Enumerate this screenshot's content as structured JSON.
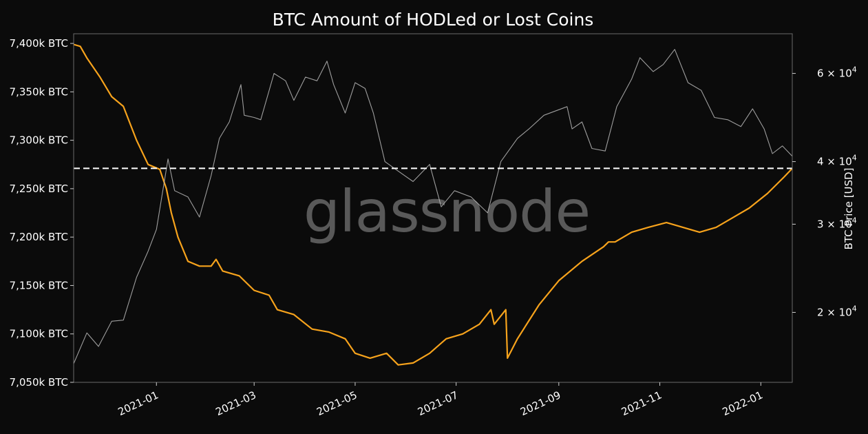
{
  "chart_data": {
    "type": "line",
    "title": "BTC Amount of HODLed or Lost Coins",
    "watermark": "glassnode",
    "xlabel": "",
    "ylabel_left": "",
    "ylabel_right": "BTC Price [USD]",
    "x_range": [
      "2020-11-12",
      "2022-01-20"
    ],
    "x_ticks": [
      {
        "date": "2021-01-01",
        "label": "2021-01"
      },
      {
        "date": "2021-03-01",
        "label": "2021-03"
      },
      {
        "date": "2021-05-01",
        "label": "2021-05"
      },
      {
        "date": "2021-07-01",
        "label": "2021-07"
      },
      {
        "date": "2021-09-01",
        "label": "2021-09"
      },
      {
        "date": "2021-11-01",
        "label": "2021-11"
      },
      {
        "date": "2022-01-01",
        "label": "2022-01"
      }
    ],
    "y_left": {
      "range": [
        7050000,
        7410000
      ],
      "ticks": [
        {
          "value": 7400000,
          "label": "7,400k BTC"
        },
        {
          "value": 7350000,
          "label": "7,350k BTC"
        },
        {
          "value": 7300000,
          "label": "7,300k BTC"
        },
        {
          "value": 7250000,
          "label": "7,250k BTC"
        },
        {
          "value": 7200000,
          "label": "7,200k BTC"
        },
        {
          "value": 7150000,
          "label": "7,150k BTC"
        },
        {
          "value": 7100000,
          "label": "7,100k BTC"
        },
        {
          "value": 7050000,
          "label": "7,050k BTC"
        }
      ]
    },
    "y_right": {
      "scale": "log",
      "range": [
        14500,
        72000
      ],
      "ticks": [
        {
          "value": 60000,
          "label_mantissa": "6",
          "label_base": "10",
          "label_exp": "4"
        },
        {
          "value": 40000,
          "label_mantissa": "4",
          "label_base": "10",
          "label_exp": "4"
        },
        {
          "value": 30000,
          "label_mantissa": "3",
          "label_base": "10",
          "label_exp": "4"
        },
        {
          "value": 20000,
          "label_mantissa": "2",
          "label_base": "10",
          "label_exp": "4"
        }
      ]
    },
    "reference_line": {
      "axis": "left",
      "value": 7271000,
      "style": "dashed",
      "color": "#ffffff"
    },
    "grid": false,
    "series": [
      {
        "axis": "left",
        "color": "#f7a31c",
        "x": [
          "2020-11-12",
          "2020-11-16",
          "2020-11-20",
          "2020-11-28",
          "2020-12-05",
          "2020-12-12",
          "2020-12-20",
          "2020-12-27",
          "2021-01-03",
          "2021-01-07",
          "2021-01-10",
          "2021-01-14",
          "2021-01-20",
          "2021-01-27",
          "2021-02-03",
          "2021-02-06",
          "2021-02-10",
          "2021-02-20",
          "2021-03-01",
          "2021-03-10",
          "2021-03-15",
          "2021-03-25",
          "2021-04-05",
          "2021-04-15",
          "2021-04-25",
          "2021-05-01",
          "2021-05-10",
          "2021-05-20",
          "2021-05-27",
          "2021-06-05",
          "2021-06-15",
          "2021-06-25",
          "2021-07-05",
          "2021-07-15",
          "2021-07-22",
          "2021-07-24",
          "2021-07-31",
          "2021-08-01",
          "2021-08-07",
          "2021-08-20",
          "2021-09-01",
          "2021-09-15",
          "2021-09-28",
          "2021-10-01",
          "2021-10-05",
          "2021-10-15",
          "2021-10-25",
          "2021-11-05",
          "2021-11-15",
          "2021-11-25",
          "2021-12-05",
          "2021-12-15",
          "2021-12-25",
          "2022-01-05",
          "2022-01-15",
          "2022-01-20"
        ],
        "values": [
          7399000,
          7397000,
          7385000,
          7365000,
          7345000,
          7335000,
          7300000,
          7275000,
          7270000,
          7250000,
          7225000,
          7200000,
          7175000,
          7170000,
          7170000,
          7177000,
          7165000,
          7160000,
          7145000,
          7140000,
          7125000,
          7120000,
          7105000,
          7102000,
          7095000,
          7080000,
          7075000,
          7080000,
          7068000,
          7070000,
          7080000,
          7095000,
          7100000,
          7110000,
          7125000,
          7110000,
          7125000,
          7075000,
          7095000,
          7130000,
          7155000,
          7175000,
          7190000,
          7195000,
          7195000,
          7205000,
          7210000,
          7215000,
          7210000,
          7205000,
          7210000,
          7220000,
          7230000,
          7245000,
          7262000,
          7271000
        ]
      },
      {
        "axis": "right",
        "scale": "log",
        "color": "#b8b8b8",
        "x": [
          "2020-11-12",
          "2020-11-20",
          "2020-11-27",
          "2020-12-05",
          "2020-12-12",
          "2020-12-20",
          "2020-12-27",
          "2021-01-01",
          "2021-01-08",
          "2021-01-12",
          "2021-01-20",
          "2021-01-27",
          "2021-02-03",
          "2021-02-08",
          "2021-02-14",
          "2021-02-21",
          "2021-02-23",
          "2021-03-01",
          "2021-03-05",
          "2021-03-13",
          "2021-03-20",
          "2021-03-25",
          "2021-04-01",
          "2021-04-08",
          "2021-04-14",
          "2021-04-18",
          "2021-04-25",
          "2021-05-01",
          "2021-05-07",
          "2021-05-12",
          "2021-05-19",
          "2021-05-26",
          "2021-06-05",
          "2021-06-15",
          "2021-06-22",
          "2021-06-30",
          "2021-07-10",
          "2021-07-20",
          "2021-07-28",
          "2021-08-07",
          "2021-08-14",
          "2021-08-23",
          "2021-09-06",
          "2021-09-09",
          "2021-09-15",
          "2021-09-21",
          "2021-09-29",
          "2021-10-06",
          "2021-10-15",
          "2021-10-20",
          "2021-10-28",
          "2021-11-03",
          "2021-11-10",
          "2021-11-18",
          "2021-11-26",
          "2021-12-04",
          "2021-12-12",
          "2021-12-20",
          "2021-12-27",
          "2022-01-03",
          "2022-01-08",
          "2022-01-14",
          "2022-01-20"
        ],
        "values": [
          15800,
          18200,
          17100,
          19200,
          19300,
          23500,
          26500,
          29300,
          40500,
          35000,
          34000,
          31000,
          37500,
          44500,
          48000,
          57000,
          49500,
          49000,
          48500,
          60000,
          58000,
          53000,
          59000,
          58000,
          63500,
          57000,
          50000,
          57500,
          56000,
          50000,
          40000,
          38500,
          36500,
          39500,
          32500,
          35000,
          34000,
          31600,
          40000,
          44500,
          46500,
          49500,
          51500,
          46500,
          48000,
          42500,
          42000,
          51500,
          58500,
          64500,
          60500,
          62500,
          67000,
          57500,
          55500,
          49000,
          48500,
          47000,
          51000,
          46500,
          41500,
          43000,
          41000
        ]
      }
    ]
  }
}
